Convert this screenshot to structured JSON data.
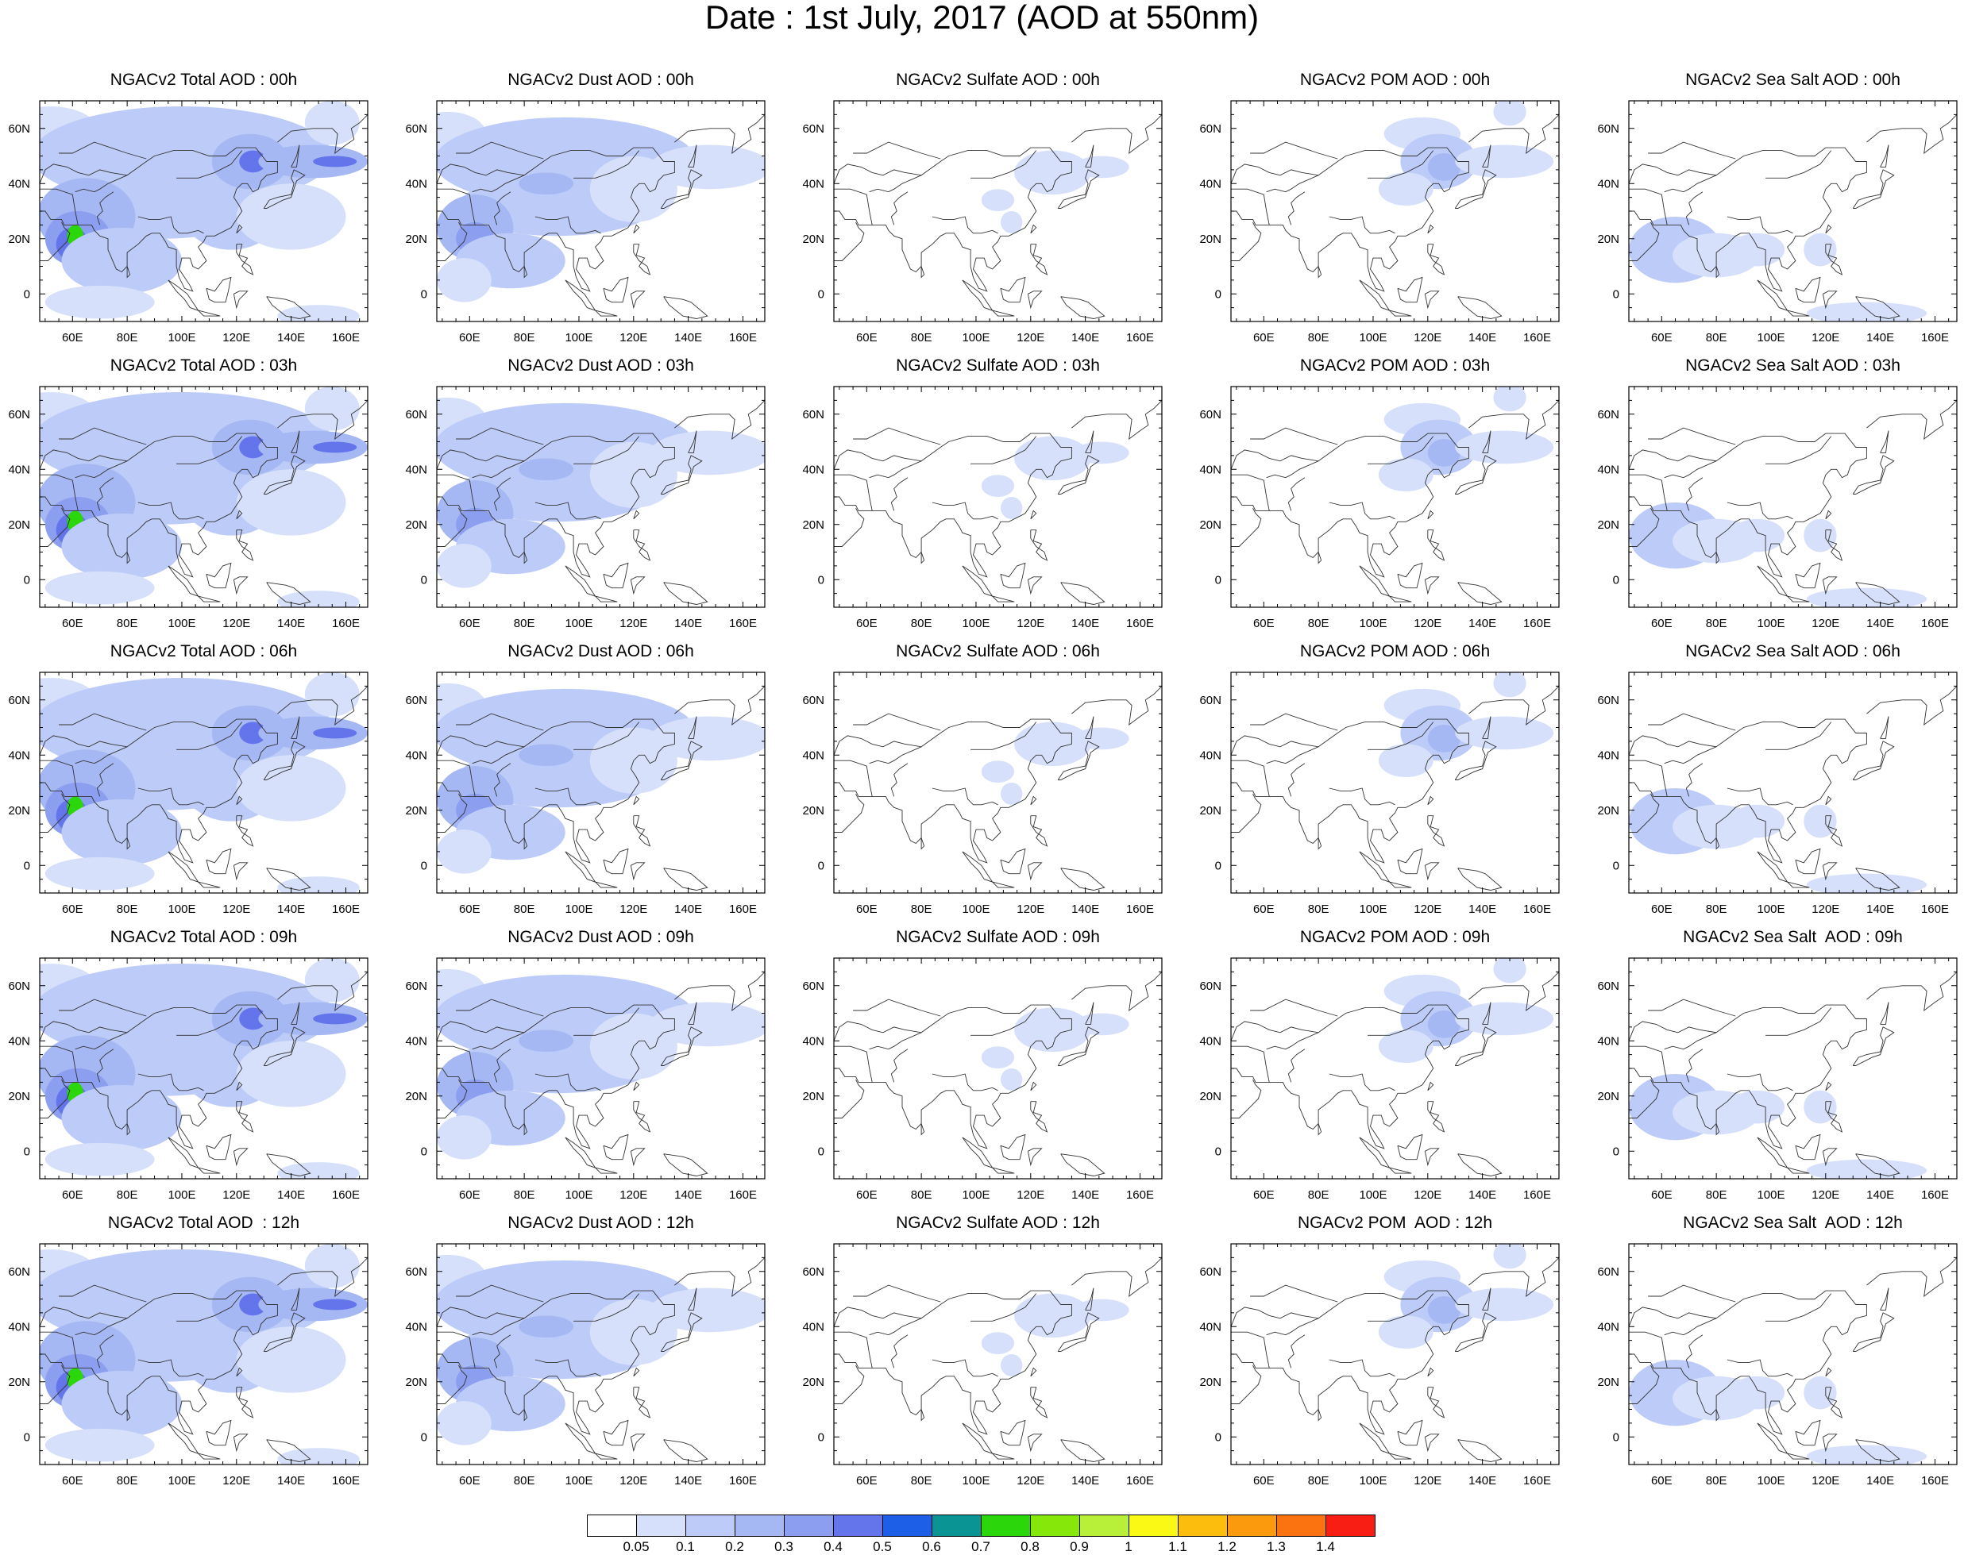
{
  "title": "Date : 1st July, 2017 (AOD at 550nm)",
  "panel_titles": [
    [
      "NGACv2 Total AOD : 00h",
      "NGACv2 Dust AOD : 00h",
      "NGACv2 Sulfate AOD : 00h",
      "NGACv2 POM AOD : 00h",
      "NGACv2 Sea Salt AOD : 00h"
    ],
    [
      "NGACv2 Total AOD : 03h",
      "NGACv2 Dust AOD : 03h",
      "NGACv2 Sulfate AOD : 03h",
      "NGACv2 POM AOD : 03h",
      "NGACv2 Sea Salt AOD : 03h"
    ],
    [
      "NGACv2 Total AOD : 06h",
      "NGACv2 Dust AOD : 06h",
      "NGACv2 Sulfate AOD : 06h",
      "NGACv2 POM AOD : 06h",
      "NGACv2 Sea Salt AOD : 06h"
    ],
    [
      "NGACv2 Total AOD : 09h",
      "NGACv2 Dust AOD : 09h",
      "NGACv2 Sulfate AOD : 09h",
      "NGACv2 POM AOD : 09h",
      "NGACv2 Sea Salt  AOD : 09h"
    ],
    [
      "NGACv2 Total AOD  : 12h",
      "NGACv2 Dust AOD : 12h",
      "NGACv2 Sulfate AOD : 12h",
      "NGACv2 POM  AOD : 12h",
      "NGACv2 Sea Salt  AOD : 12h"
    ]
  ],
  "map_extent": {
    "lon": [
      48,
      168
    ],
    "lat": [
      -10,
      70
    ]
  },
  "x_ticks": [
    {
      "value": 60,
      "label": "60E"
    },
    {
      "value": 80,
      "label": "80E"
    },
    {
      "value": 100,
      "label": "100E"
    },
    {
      "value": 120,
      "label": "120E"
    },
    {
      "value": 140,
      "label": "140E"
    },
    {
      "value": 160,
      "label": "160E"
    }
  ],
  "y_ticks": [
    {
      "value": 0,
      "label": "0"
    },
    {
      "value": 20,
      "label": "20N"
    },
    {
      "value": 40,
      "label": "40N"
    },
    {
      "value": 60,
      "label": "60N"
    }
  ],
  "colorbar": {
    "colors": [
      "#ffffff",
      "#d6e0fb",
      "#bccbf7",
      "#a6b8f4",
      "#8c9ef0",
      "#6474ea",
      "#1d5fe6",
      "#0b9494",
      "#2bd60b",
      "#86e80a",
      "#b7ef39",
      "#f9f915",
      "#fcbd0c",
      "#fb9a0c",
      "#fb7210",
      "#f81e14"
    ],
    "labels": [
      "0.05",
      "0.1",
      "0.2",
      "0.3",
      "0.4",
      "0.5",
      "0.6",
      "0.7",
      "0.8",
      "0.9",
      "1",
      "1.1",
      "1.2",
      "1.3",
      "1.4"
    ]
  },
  "fields": {
    "total": [
      {
        "lon": 52,
        "lat": 58,
        "rx": 18,
        "ry": 10,
        "level": 1
      },
      {
        "lon": 100,
        "lat": 50,
        "rx": 55,
        "ry": 18,
        "level": 2
      },
      {
        "lon": 92,
        "lat": 32,
        "rx": 40,
        "ry": 12,
        "level": 2
      },
      {
        "lon": 65,
        "lat": 28,
        "rx": 18,
        "ry": 14,
        "level": 3
      },
      {
        "lon": 62,
        "lat": 20,
        "rx": 12,
        "ry": 10,
        "level": 4
      },
      {
        "lon": 60,
        "lat": 18,
        "rx": 6,
        "ry": 6,
        "level": 5
      },
      {
        "lon": 61,
        "lat": 21,
        "rx": 3,
        "ry": 4,
        "level": 8
      },
      {
        "lon": 78,
        "lat": 12,
        "rx": 22,
        "ry": 12,
        "level": 2
      },
      {
        "lon": 118,
        "lat": 30,
        "rx": 18,
        "ry": 14,
        "level": 2
      },
      {
        "lon": 125,
        "lat": 48,
        "rx": 14,
        "ry": 10,
        "level": 3
      },
      {
        "lon": 126,
        "lat": 48,
        "rx": 5,
        "ry": 4,
        "level": 5
      },
      {
        "lon": 148,
        "lat": 48,
        "rx": 20,
        "ry": 6,
        "level": 3
      },
      {
        "lon": 156,
        "lat": 48,
        "rx": 8,
        "ry": 2,
        "level": 5
      },
      {
        "lon": 155,
        "lat": 62,
        "rx": 10,
        "ry": 8,
        "level": 1
      },
      {
        "lon": 70,
        "lat": -3,
        "rx": 20,
        "ry": 6,
        "level": 1
      },
      {
        "lon": 150,
        "lat": -8,
        "rx": 15,
        "ry": 4,
        "level": 1
      },
      {
        "lon": 140,
        "lat": 28,
        "rx": 20,
        "ry": 12,
        "level": 1
      }
    ],
    "dust": [
      {
        "lon": 52,
        "lat": 58,
        "rx": 14,
        "ry": 8,
        "level": 1
      },
      {
        "lon": 95,
        "lat": 48,
        "rx": 48,
        "ry": 16,
        "level": 2
      },
      {
        "lon": 92,
        "lat": 32,
        "rx": 36,
        "ry": 11,
        "level": 2
      },
      {
        "lon": 88,
        "lat": 40,
        "rx": 10,
        "ry": 4,
        "level": 3
      },
      {
        "lon": 62,
        "lat": 24,
        "rx": 14,
        "ry": 12,
        "level": 3
      },
      {
        "lon": 62,
        "lat": 20,
        "rx": 7,
        "ry": 6,
        "level": 4
      },
      {
        "lon": 75,
        "lat": 12,
        "rx": 20,
        "ry": 10,
        "level": 2
      },
      {
        "lon": 120,
        "lat": 38,
        "rx": 16,
        "ry": 12,
        "level": 1
      },
      {
        "lon": 148,
        "lat": 46,
        "rx": 22,
        "ry": 8,
        "level": 1
      },
      {
        "lon": 58,
        "lat": 5,
        "rx": 10,
        "ry": 8,
        "level": 1
      }
    ],
    "sulfate": [
      {
        "lon": 128,
        "lat": 44,
        "rx": 14,
        "ry": 8,
        "level": 1
      },
      {
        "lon": 146,
        "lat": 46,
        "rx": 10,
        "ry": 4,
        "level": 1
      },
      {
        "lon": 108,
        "lat": 34,
        "rx": 6,
        "ry": 4,
        "level": 1
      },
      {
        "lon": 113,
        "lat": 26,
        "rx": 4,
        "ry": 4,
        "level": 1
      }
    ],
    "pom": [
      {
        "lon": 118,
        "lat": 58,
        "rx": 14,
        "ry": 6,
        "level": 1
      },
      {
        "lon": 124,
        "lat": 48,
        "rx": 14,
        "ry": 10,
        "level": 2
      },
      {
        "lon": 126,
        "lat": 46,
        "rx": 6,
        "ry": 5,
        "level": 3
      },
      {
        "lon": 148,
        "lat": 48,
        "rx": 18,
        "ry": 6,
        "level": 1
      },
      {
        "lon": 150,
        "lat": 66,
        "rx": 6,
        "ry": 5,
        "level": 1
      },
      {
        "lon": 112,
        "lat": 38,
        "rx": 10,
        "ry": 6,
        "level": 1
      }
    ],
    "seasalt": [
      {
        "lon": 65,
        "lat": 16,
        "rx": 17,
        "ry": 12,
        "level": 2
      },
      {
        "lon": 80,
        "lat": 14,
        "rx": 16,
        "ry": 8,
        "level": 1
      },
      {
        "lon": 95,
        "lat": 16,
        "rx": 10,
        "ry": 6,
        "level": 1
      },
      {
        "lon": 135,
        "lat": -7,
        "rx": 22,
        "ry": 4,
        "level": 1
      },
      {
        "lon": 118,
        "lat": 16,
        "rx": 6,
        "ry": 6,
        "level": 1
      }
    ]
  }
}
